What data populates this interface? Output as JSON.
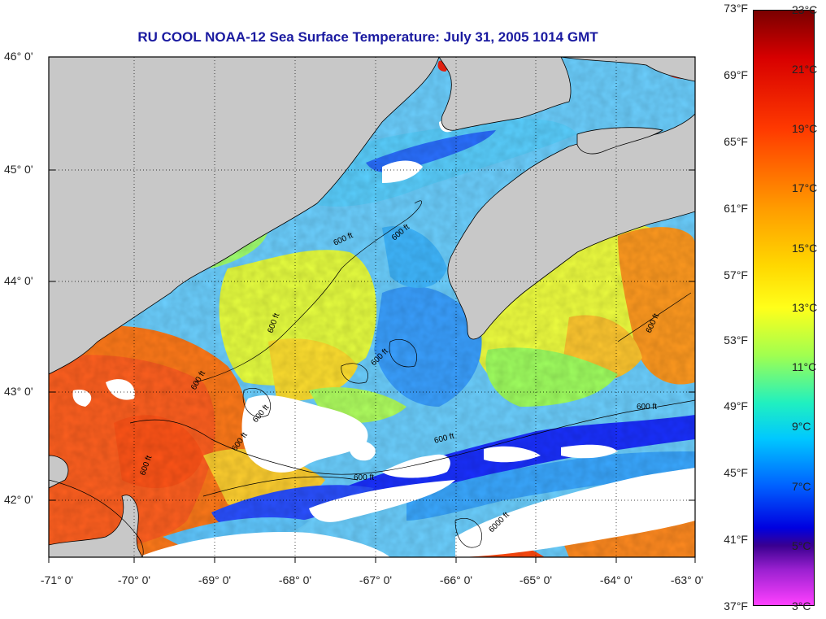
{
  "title": "RU COOL  NOAA-12  Sea Surface Temperature:  July 31, 2005 1014 GMT",
  "latitude_labels": [
    "46° 0'",
    "45° 0'",
    "44° 0'",
    "43° 0'",
    "42° 0'"
  ],
  "longitude_labels": [
    "-71° 0'",
    "-70° 0'",
    "-69° 0'",
    "-68° 0'",
    "-67° 0'",
    "-66° 0'",
    "-65° 0'",
    "-64° 0'",
    "-63° 0'"
  ],
  "colorbar": {
    "fahrenheit_labels": [
      "73°F",
      "69°F",
      "65°F",
      "61°F",
      "57°F",
      "53°F",
      "49°F",
      "45°F",
      "41°F",
      "37°F"
    ],
    "celsius_labels": [
      "23°C",
      "21°C",
      "19°C",
      "17°C",
      "15°C",
      "13°C",
      "11°C",
      "9°C",
      "7°C",
      "5°C",
      "3°C"
    ]
  },
  "contour_labels": [
    "600 ft",
    "600 ft",
    "600 ft",
    "600 ft",
    "600 ft",
    "600 ft",
    "600 ft",
    "600 ft",
    "600 ft",
    "600 ft",
    "6000 ft",
    "600 ft",
    "600 ft"
  ],
  "colors": {
    "land": "#c8c8c8",
    "title": "#1a1aa0",
    "coast": "#000000",
    "cloud": "#ffffff"
  }
}
